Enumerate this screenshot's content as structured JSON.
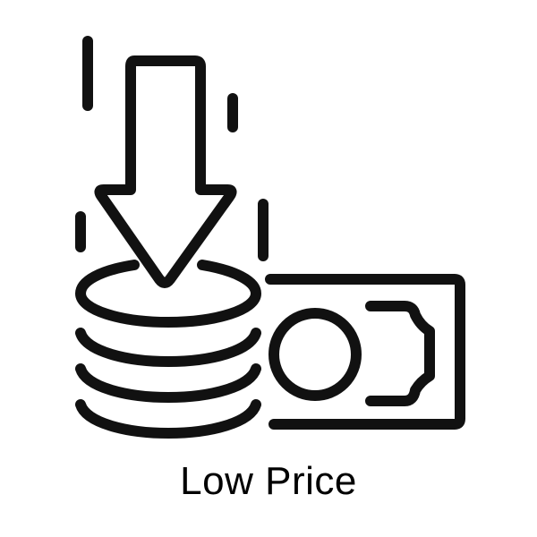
{
  "caption": {
    "text": "Low Price"
  },
  "icon": {
    "name": "low-price-icon",
    "stroke_color": "#111111",
    "background_color": "#ffffff"
  }
}
